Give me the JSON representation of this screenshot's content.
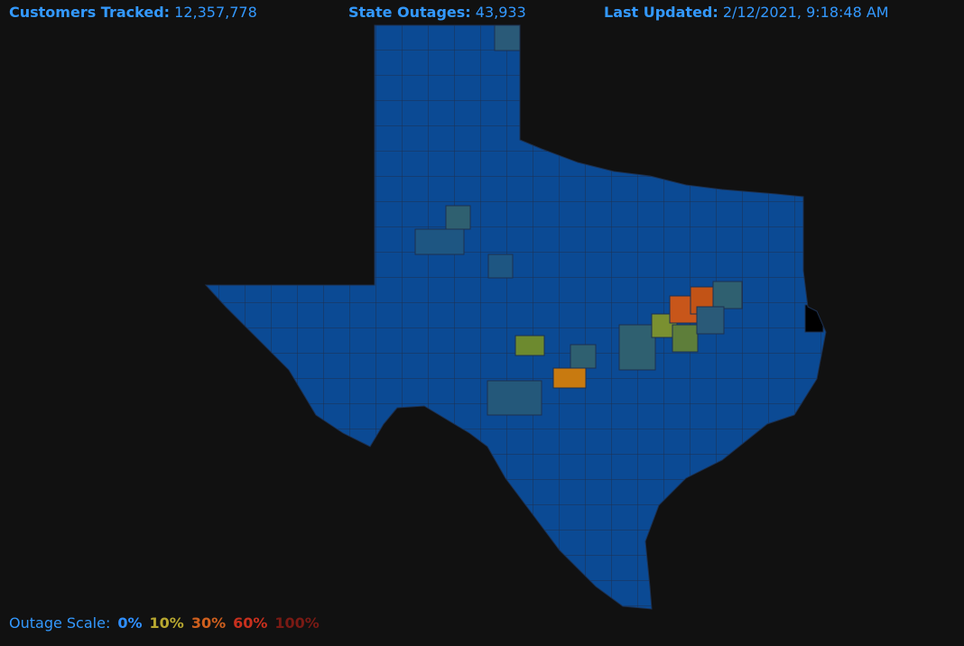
{
  "header": {
    "customers_tracked": {
      "label": "Customers Tracked:",
      "value": "12,357,778"
    },
    "state_outages": {
      "label": "State Outages:",
      "value": "43,933"
    },
    "last_updated": {
      "label": "Last Updated:",
      "value": "2/12/2021, 9:18:48 AM"
    }
  },
  "legend": {
    "title": "Outage Scale:",
    "items": [
      {
        "label": "0%",
        "color": "#2f8fff"
      },
      {
        "label": "10%",
        "color": "#b8a830"
      },
      {
        "label": "30%",
        "color": "#d0601e"
      },
      {
        "label": "60%",
        "color": "#c8301e"
      },
      {
        "label": "100%",
        "color": "#7a1a14"
      }
    ]
  }
}
